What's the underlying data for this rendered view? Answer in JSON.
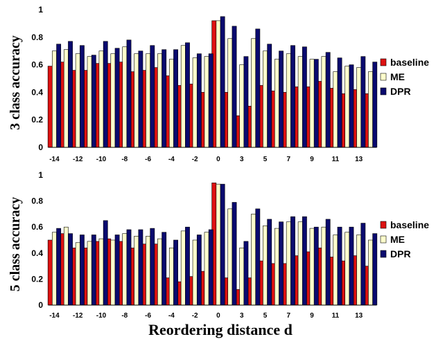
{
  "chart_data": [
    {
      "type": "bar",
      "ylabel": "3 class accuracy",
      "ylim": [
        0,
        1
      ],
      "yticks": [
        "0",
        "0.2",
        "0.4",
        "0.6",
        "0.8",
        "1"
      ],
      "categories": [
        "-14",
        "-13",
        "-12",
        "-11",
        "-10",
        "-9",
        "-8",
        "-7",
        "-6",
        "-5",
        "-4",
        "-3",
        "-2",
        "-1",
        "0",
        "1",
        "3",
        "4",
        "5",
        "6",
        "7",
        "8",
        "9",
        "10",
        "11",
        "12",
        "13",
        "14"
      ],
      "tick_labels": [
        "-14",
        "-12",
        "-10",
        "-8",
        "-6",
        "-4",
        "-2",
        "0",
        "3",
        "5",
        "7",
        "9",
        "11",
        "13"
      ],
      "legend_position": "right",
      "series": [
        {
          "name": "baseline",
          "color": "#dd1111",
          "values": [
            0.59,
            0.62,
            0.56,
            0.56,
            0.61,
            0.61,
            0.62,
            0.55,
            0.56,
            0.58,
            0.52,
            0.45,
            0.46,
            0.4,
            0.92,
            0.4,
            0.23,
            0.3,
            0.45,
            0.41,
            0.4,
            0.44,
            0.44,
            0.48,
            0.43,
            0.39,
            0.42,
            0.39
          ]
        },
        {
          "name": "ME",
          "color": "#ffffcc",
          "values": [
            0.7,
            0.71,
            0.68,
            0.66,
            0.7,
            0.68,
            0.73,
            0.68,
            0.68,
            0.68,
            0.64,
            0.74,
            0.65,
            0.66,
            0.92,
            0.79,
            0.6,
            0.79,
            0.7,
            0.64,
            0.68,
            0.66,
            0.64,
            0.66,
            0.55,
            0.59,
            0.58,
            0.55
          ]
        },
        {
          "name": "DPR",
          "color": "#0a0a6e",
          "values": [
            0.75,
            0.77,
            0.74,
            0.67,
            0.77,
            0.72,
            0.78,
            0.7,
            0.74,
            0.71,
            0.71,
            0.76,
            0.68,
            0.68,
            0.95,
            0.88,
            0.66,
            0.86,
            0.75,
            0.7,
            0.74,
            0.73,
            0.64,
            0.69,
            0.65,
            0.6,
            0.66,
            0.62
          ]
        }
      ]
    },
    {
      "type": "bar",
      "ylabel": "5 class accuracy",
      "xlabel": "Reordering distance d",
      "ylim": [
        0,
        1
      ],
      "yticks": [
        "0",
        "0.2",
        "0.4",
        "0.6",
        "0.8",
        "1"
      ],
      "categories": [
        "-14",
        "-13",
        "-12",
        "-11",
        "-10",
        "-9",
        "-8",
        "-7",
        "-6",
        "-5",
        "-4",
        "-3",
        "-2",
        "-1",
        "0",
        "1",
        "3",
        "4",
        "5",
        "6",
        "7",
        "8",
        "9",
        "10",
        "11",
        "12",
        "13",
        "14"
      ],
      "tick_labels": [
        "-14",
        "-12",
        "-10",
        "-8",
        "-6",
        "-4",
        "-2",
        "0",
        "3",
        "5",
        "7",
        "9",
        "11",
        "13"
      ],
      "legend_position": "right",
      "series": [
        {
          "name": "baseline",
          "color": "#dd1111",
          "values": [
            0.5,
            0.55,
            0.44,
            0.44,
            0.49,
            0.51,
            0.49,
            0.44,
            0.47,
            0.47,
            0.21,
            0.18,
            0.22,
            0.26,
            0.94,
            0.21,
            0.12,
            0.21,
            0.34,
            0.32,
            0.32,
            0.38,
            0.41,
            0.44,
            0.37,
            0.34,
            0.38,
            0.3
          ]
        },
        {
          "name": "ME",
          "color": "#ffffcc",
          "values": [
            0.56,
            0.6,
            0.48,
            0.49,
            0.51,
            0.5,
            0.55,
            0.53,
            0.53,
            0.51,
            0.44,
            0.57,
            0.5,
            0.56,
            0.93,
            0.74,
            0.44,
            0.7,
            0.61,
            0.59,
            0.64,
            0.64,
            0.59,
            0.6,
            0.54,
            0.56,
            0.54,
            0.5
          ]
        },
        {
          "name": "DPR",
          "color": "#0a0a6e",
          "values": [
            0.59,
            0.55,
            0.54,
            0.54,
            0.65,
            0.54,
            0.58,
            0.58,
            0.59,
            0.56,
            0.5,
            0.6,
            0.54,
            0.58,
            0.93,
            0.79,
            0.49,
            0.74,
            0.66,
            0.64,
            0.68,
            0.68,
            0.6,
            0.66,
            0.6,
            0.6,
            0.63,
            0.55
          ]
        }
      ]
    }
  ]
}
